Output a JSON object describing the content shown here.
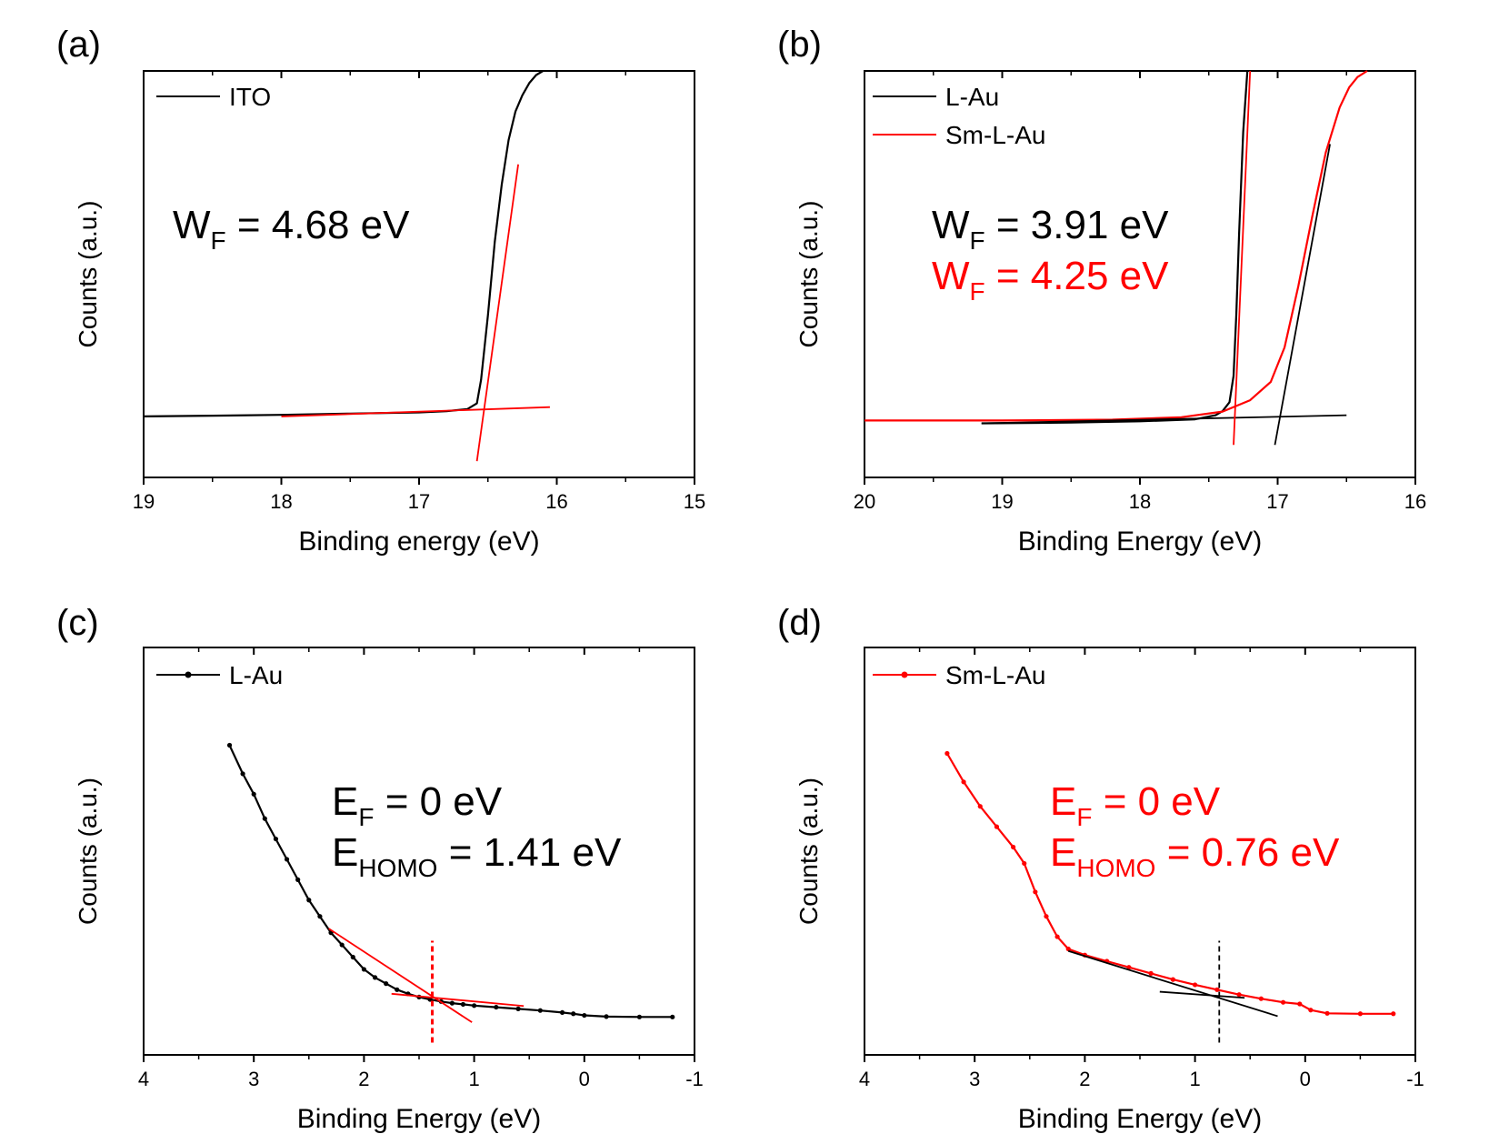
{
  "chart_data": [
    {
      "panel": "(a)",
      "type": "line",
      "xlabel": "Binding energy (eV)",
      "ylabel": "Counts (a.u.)",
      "xlim": [
        19,
        15
      ],
      "x_reversed": true,
      "xticks": [
        "19",
        "18",
        "17",
        "16",
        "15"
      ],
      "ylim": [
        0,
        100
      ],
      "legend_position": "top-left",
      "colors": {
        "data": "#000000",
        "fit": "#ff0000"
      },
      "series": [
        {
          "name": "ITO",
          "color": "#000000",
          "x": [
            19,
            18.5,
            18,
            17.5,
            17,
            16.8,
            16.65,
            16.58,
            16.55,
            16.5,
            16.45,
            16.4,
            16.35,
            16.3,
            16.25,
            16.2,
            16.15,
            16.1
          ],
          "y": [
            15.0,
            15.2,
            15.4,
            15.7,
            16.0,
            16.3,
            16.8,
            18.2,
            24,
            40,
            58,
            72,
            83,
            90,
            94,
            97,
            99,
            100
          ]
        }
      ],
      "fit_lines": [
        {
          "color": "#ff0000",
          "x": [
            18.0,
            16.05
          ],
          "y": [
            15.0,
            17.3
          ]
        },
        {
          "color": "#ff0000",
          "x": [
            16.58,
            16.28
          ],
          "y": [
            4,
            77
          ]
        }
      ],
      "annotations": [
        {
          "text": "W",
          "sub": "F",
          "tail": " = 4.68 eV",
          "color": "#000000"
        }
      ]
    },
    {
      "panel": "(b)",
      "type": "line",
      "xlabel": "Binding Energy (eV)",
      "ylabel": "Counts (a.u.)",
      "xlim": [
        20,
        16
      ],
      "x_reversed": true,
      "xticks": [
        "20",
        "19",
        "18",
        "17",
        "16"
      ],
      "ylim": [
        0,
        100
      ],
      "legend_position": "top-left",
      "colors": {
        "L-Au": "#000000",
        "Sm-L-Au": "#ff0000"
      },
      "series": [
        {
          "name": "L-Au",
          "color": "#000000",
          "x": [
            19.15,
            18.5,
            18.0,
            17.6,
            17.45,
            17.4,
            17.35,
            17.32,
            17.3,
            17.28,
            17.25,
            17.22
          ],
          "y": [
            13.3,
            13.5,
            13.8,
            14.3,
            15.3,
            16.3,
            18.5,
            25,
            40,
            60,
            85,
            100
          ]
        },
        {
          "name": "Sm-L-Au",
          "color": "#ff0000",
          "x": [
            20,
            19,
            18.2,
            17.7,
            17.4,
            17.2,
            17.05,
            16.95,
            16.85,
            16.75,
            16.65,
            16.55,
            16.48,
            16.42,
            16.35
          ],
          "y": [
            14,
            14,
            14.2,
            14.8,
            16.2,
            19,
            23.5,
            32,
            47,
            64,
            80,
            91,
            96,
            98.5,
            100
          ]
        }
      ],
      "fit_lines": [
        {
          "color": "#000000",
          "x": [
            19.15,
            16.5
          ],
          "y": [
            13.3,
            15.3
          ]
        },
        {
          "color": "#000000",
          "x": [
            17.02,
            16.62
          ],
          "y": [
            8,
            82
          ]
        },
        {
          "color": "#ff0000",
          "x": [
            17.32,
            17.2
          ],
          "y": [
            8,
            100
          ]
        }
      ],
      "annotations": [
        {
          "text": "W",
          "sub": "F",
          "tail": " = 3.91 eV",
          "color": "#000000"
        },
        {
          "text": "W",
          "sub": "F",
          "tail": " = 4.25 eV",
          "color": "#ff0000"
        }
      ]
    },
    {
      "panel": "(c)",
      "type": "line",
      "xlabel": "Binding Energy (eV)",
      "ylabel": "Counts (a.u.)",
      "xlim": [
        4,
        -1
      ],
      "x_reversed": true,
      "xticks": [
        "4",
        "3",
        "2",
        "1",
        "0",
        "-1"
      ],
      "ylim": [
        0,
        100
      ],
      "legend_position": "top-left",
      "colors": {
        "data": "#000000",
        "fit": "#ff0000"
      },
      "series": [
        {
          "name": "L-Au",
          "color": "#000000",
          "markers": true,
          "x": [
            3.22,
            3.1,
            3.0,
            2.9,
            2.8,
            2.7,
            2.6,
            2.5,
            2.4,
            2.3,
            2.2,
            2.1,
            2.0,
            1.9,
            1.8,
            1.7,
            1.6,
            1.5,
            1.4,
            1.3,
            1.2,
            1.1,
            1.0,
            0.8,
            0.6,
            0.4,
            0.2,
            0.1,
            0.0,
            -0.2,
            -0.5,
            -0.8
          ],
          "y": [
            76,
            69,
            64,
            58,
            53,
            48,
            43,
            38,
            34,
            30,
            27,
            24,
            21,
            19,
            17.5,
            16,
            15,
            14.2,
            13.6,
            13.1,
            12.7,
            12.4,
            12.1,
            11.7,
            11.3,
            10.9,
            10.4,
            10.1,
            9.7,
            9.4,
            9.3,
            9.3
          ]
        }
      ],
      "fit_lines": [
        {
          "color": "#ff0000",
          "x": [
            2.32,
            1.02
          ],
          "y": [
            31,
            8
          ]
        },
        {
          "color": "#ff0000",
          "x": [
            1.75,
            0.55
          ],
          "y": [
            15,
            12
          ]
        }
      ],
      "vlines": [
        {
          "color": "#ff0000",
          "x": 1.38,
          "dashed": true
        }
      ],
      "annotations": [
        {
          "text": "E",
          "sub": "F",
          "tail": " = 0 eV",
          "color": "#000000"
        },
        {
          "text": "E",
          "sub": "HOMO",
          "tail": " = 1.41 eV",
          "color": "#000000"
        }
      ]
    },
    {
      "panel": "(d)",
      "type": "line",
      "xlabel": "Binding Energy (eV)",
      "ylabel": "Counts (a.u.)",
      "xlim": [
        4,
        -1
      ],
      "x_reversed": true,
      "xticks": [
        "4",
        "3",
        "2",
        "1",
        "0",
        "-1"
      ],
      "ylim": [
        0,
        100
      ],
      "legend_position": "top-left",
      "colors": {
        "data": "#ff0000",
        "fit": "#000000"
      },
      "series": [
        {
          "name": "Sm-L-Au",
          "color": "#ff0000",
          "markers": true,
          "x": [
            3.25,
            3.1,
            2.95,
            2.8,
            2.65,
            2.55,
            2.45,
            2.35,
            2.25,
            2.15,
            2.0,
            1.8,
            1.6,
            1.4,
            1.2,
            1.0,
            0.8,
            0.6,
            0.4,
            0.2,
            0.05,
            -0.05,
            -0.2,
            -0.5,
            -0.8
          ],
          "y": [
            74,
            67,
            61,
            56,
            51,
            47,
            40,
            34,
            29,
            26,
            24.5,
            23,
            21.5,
            20,
            18.5,
            17.2,
            16,
            14.8,
            13.8,
            12.9,
            12.5,
            11,
            10.2,
            10.1,
            10.1
          ]
        }
      ],
      "fit_lines": [
        {
          "color": "#000000",
          "x": [
            2.15,
            0.25
          ],
          "y": [
            25.5,
            9.5
          ]
        },
        {
          "color": "#000000",
          "x": [
            1.32,
            0.55
          ],
          "y": [
            15.5,
            14
          ]
        }
      ],
      "vlines": [
        {
          "color": "#000000",
          "x": 0.78,
          "dashed": true
        }
      ],
      "annotations": [
        {
          "text": "E",
          "sub": "F",
          "tail": " = 0 eV",
          "color": "#ff0000"
        },
        {
          "text": "E",
          "sub": "HOMO",
          "tail": " = 0.76 eV",
          "color": "#ff0000"
        }
      ]
    }
  ]
}
